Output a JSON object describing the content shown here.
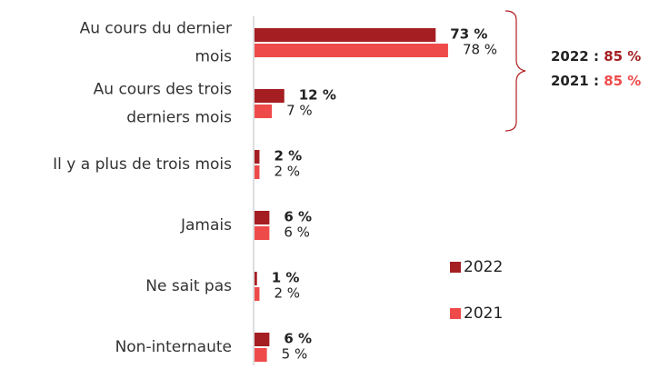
{
  "chart_data": {
    "type": "hbar",
    "categories": [
      "Au cours du dernier\nmois",
      "Au cours des trois\nderniers mois",
      "Il y a plus de trois mois",
      "Jamais",
      "Ne sait pas",
      "Non-internaute"
    ],
    "series": [
      {
        "name": "2022",
        "color": "#a51e22",
        "values": [
          73,
          12,
          2,
          6,
          1,
          6
        ],
        "value_labels": [
          "73 %",
          "12 %",
          "2 %",
          "6 %",
          "1 %",
          "6 %"
        ]
      },
      {
        "name": "2021",
        "color": "#ef4a4a",
        "values": [
          78,
          7,
          2,
          6,
          2,
          5
        ],
        "value_labels": [
          "78 %",
          "7 %",
          "2 %",
          "6 %",
          "2 %",
          "5 %"
        ]
      }
    ],
    "xlim": [
      0,
      100
    ],
    "annotations": [
      {
        "label": "2022 :",
        "value": 85,
        "value_label": "85 %",
        "color": "#a51e22"
      },
      {
        "label": "2021 :",
        "value": 85,
        "value_label": "85 %",
        "color": "#ef4a4a"
      }
    ]
  }
}
